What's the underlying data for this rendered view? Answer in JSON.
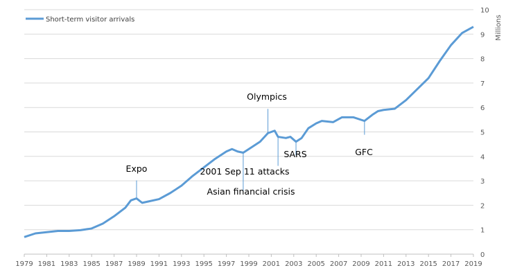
{
  "chart_data": {
    "type": "line",
    "ylabel": "Millions",
    "xlim": [
      1979,
      2019
    ],
    "ylim": [
      0,
      10
    ],
    "grid": true,
    "legend": "top-left",
    "x_ticks": [
      "1979",
      "1981",
      "1983",
      "1985",
      "1987",
      "1989",
      "1991",
      "1993",
      "1995",
      "1997",
      "1999",
      "2001",
      "2003",
      "2005",
      "2007",
      "2009",
      "2011",
      "2013",
      "2015",
      "2017",
      "2019"
    ],
    "y_ticks": [
      "0",
      "1",
      "2",
      "3",
      "4",
      "5",
      "6",
      "7",
      "8",
      "9",
      "10"
    ],
    "y_axis_side": "right",
    "series": [
      {
        "name": "Short-term visitor arrivals",
        "color": "#5b9bd5",
        "x": [
          1979,
          1980,
          1981,
          1982,
          1983,
          1984,
          1985,
          1986,
          1987,
          1988,
          1988.5,
          1989,
          1989.5,
          1990,
          1991,
          1992,
          1993,
          1994,
          1995,
          1996,
          1997,
          1997.5,
          1998,
          1998.5,
          1999,
          2000,
          2000.7,
          2001.3,
          2001.6,
          2002.3,
          2002.7,
          2003.2,
          2003.7,
          2004.3,
          2005,
          2005.5,
          2006.5,
          2007.3,
          2008.3,
          2009.3,
          2010,
          2010.5,
          2011,
          2012,
          2013,
          2014,
          2015,
          2016,
          2017,
          2018,
          2019
        ],
        "y": [
          0.7,
          0.85,
          0.9,
          0.95,
          0.95,
          0.98,
          1.05,
          1.25,
          1.55,
          1.9,
          2.2,
          2.28,
          2.1,
          2.15,
          2.25,
          2.5,
          2.8,
          3.2,
          3.55,
          3.9,
          4.2,
          4.3,
          4.2,
          4.15,
          4.3,
          4.6,
          4.95,
          5.05,
          4.8,
          4.75,
          4.8,
          4.6,
          4.75,
          5.15,
          5.35,
          5.45,
          5.4,
          5.6,
          5.6,
          5.45,
          5.7,
          5.85,
          5.9,
          5.95,
          6.3,
          6.75,
          7.2,
          7.9,
          8.55,
          9.05,
          9.3
        ]
      }
    ],
    "annotations": [
      {
        "label": "Expo",
        "x": 1989,
        "y": 2.28
      },
      {
        "label": "Asian financial crisis",
        "x": 1998.5,
        "y": 4.15
      },
      {
        "label": "Olympics",
        "x": 2000.7,
        "y": 4.95
      },
      {
        "label": "2001  Sep 11 attacks",
        "x": 2001.6,
        "y": 4.8
      },
      {
        "label": "SARS",
        "x": 2003.2,
        "y": 4.6
      },
      {
        "label": "GFC",
        "x": 2009.3,
        "y": 5.45
      }
    ]
  }
}
